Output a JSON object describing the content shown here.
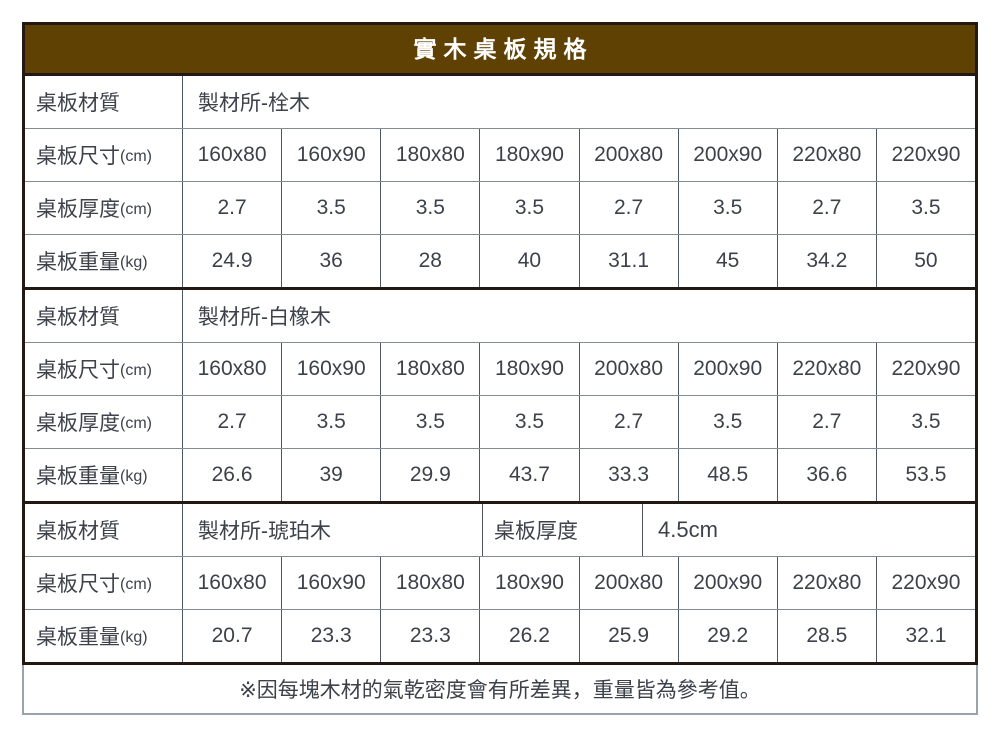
{
  "title": "實木桌板規格",
  "labels": {
    "material": "桌板材質",
    "size": "桌板尺寸",
    "size_unit": "(cm)",
    "thickness": "桌板厚度",
    "thickness_unit": "(cm)",
    "weight": "桌板重量",
    "weight_unit": "(kg)"
  },
  "sizes": [
    "160x80",
    "160x90",
    "180x80",
    "180x90",
    "200x80",
    "200x90",
    "220x80",
    "220x90"
  ],
  "sections": [
    {
      "material": "製材所-栓木",
      "thickness": [
        "2.7",
        "3.5",
        "3.5",
        "3.5",
        "2.7",
        "3.5",
        "2.7",
        "3.5"
      ],
      "weights": [
        "24.9",
        "36",
        "28",
        "40",
        "31.1",
        "45",
        "34.2",
        "50"
      ]
    },
    {
      "material": "製材所-白橡木",
      "thickness": [
        "2.7",
        "3.5",
        "3.5",
        "3.5",
        "2.7",
        "3.5",
        "2.7",
        "3.5"
      ],
      "weights": [
        "26.6",
        "39",
        "29.9",
        "43.7",
        "33.3",
        "48.5",
        "36.6",
        "53.5"
      ]
    },
    {
      "material": "製材所-琥珀木",
      "thickness_value": "4.5cm",
      "weights": [
        "20.7",
        "23.3",
        "23.3",
        "26.2",
        "25.9",
        "29.2",
        "28.5",
        "32.1"
      ]
    }
  ],
  "footnote": "※因每塊木材的氣乾密度會有所差異，重量皆為參考值。",
  "colors": {
    "header_bg": "#5e4103",
    "header_text": "#ffffff",
    "section_divider": "#241812",
    "grid_vertical": "#4d5866",
    "grid_horizontal": "#848b94",
    "text": "#3d424a",
    "footer_border": "#9aa3ad"
  }
}
